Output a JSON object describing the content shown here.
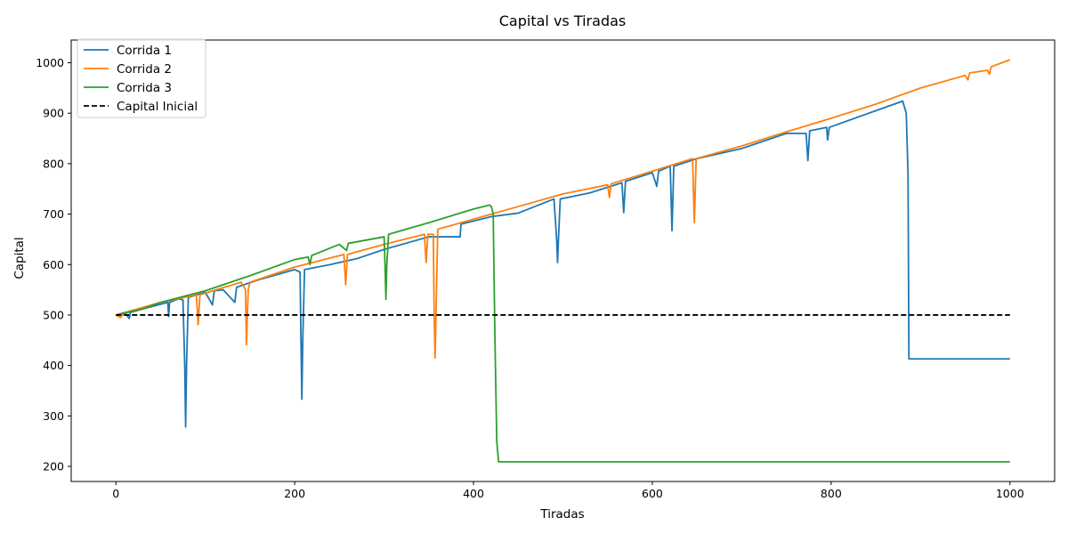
{
  "chart_data": {
    "type": "line",
    "title": "Capital vs Tiradas",
    "xlabel": "Tiradas",
    "ylabel": "Capital",
    "xlim": [
      -50,
      1050
    ],
    "ylim": [
      170,
      1045
    ],
    "xticks": [
      0,
      200,
      400,
      600,
      800,
      1000
    ],
    "yticks": [
      200,
      300,
      400,
      500,
      600,
      700,
      800,
      900,
      1000
    ],
    "grid": false,
    "legend_position": "top-left",
    "series": [
      {
        "name": "Corrida 1",
        "color": "#1f77b4",
        "style": "solid",
        "points": [
          [
            0,
            500
          ],
          [
            10,
            505
          ],
          [
            15,
            493
          ],
          [
            16,
            505
          ],
          [
            30,
            512
          ],
          [
            58,
            525
          ],
          [
            59,
            497
          ],
          [
            60,
            525
          ],
          [
            70,
            532
          ],
          [
            75,
            530
          ],
          [
            77,
            400
          ],
          [
            78,
            278
          ],
          [
            79,
            400
          ],
          [
            81,
            535
          ],
          [
            100,
            545
          ],
          [
            108,
            520
          ],
          [
            110,
            548
          ],
          [
            120,
            550
          ],
          [
            133,
            525
          ],
          [
            135,
            555
          ],
          [
            160,
            570
          ],
          [
            180,
            580
          ],
          [
            200,
            590
          ],
          [
            206,
            585
          ],
          [
            207,
            450
          ],
          [
            208,
            333
          ],
          [
            209,
            450
          ],
          [
            211,
            590
          ],
          [
            240,
            600
          ],
          [
            270,
            612
          ],
          [
            300,
            630
          ],
          [
            350,
            655
          ],
          [
            385,
            655
          ],
          [
            386,
            680
          ],
          [
            420,
            695
          ],
          [
            450,
            702
          ],
          [
            490,
            730
          ],
          [
            493,
            650
          ],
          [
            494,
            604
          ],
          [
            495,
            650
          ],
          [
            497,
            730
          ],
          [
            530,
            742
          ],
          [
            566,
            762
          ],
          [
            568,
            703
          ],
          [
            570,
            765
          ],
          [
            600,
            782
          ],
          [
            605,
            755
          ],
          [
            607,
            785
          ],
          [
            620,
            795
          ],
          [
            622,
            667
          ],
          [
            624,
            795
          ],
          [
            650,
            810
          ],
          [
            700,
            830
          ],
          [
            750,
            860
          ],
          [
            772,
            860
          ],
          [
            774,
            806
          ],
          [
            776,
            865
          ],
          [
            795,
            872
          ],
          [
            796,
            847
          ],
          [
            798,
            872
          ],
          [
            850,
            905
          ],
          [
            880,
            924
          ],
          [
            884,
            900
          ],
          [
            886,
            780
          ],
          [
            887,
            413
          ],
          [
            890,
            413
          ],
          [
            1000,
            413
          ]
        ]
      },
      {
        "name": "Corrida 2",
        "color": "#ff7f0e",
        "style": "solid",
        "points": [
          [
            0,
            500
          ],
          [
            5,
            495
          ],
          [
            10,
            505
          ],
          [
            50,
            525
          ],
          [
            90,
            540
          ],
          [
            92,
            481
          ],
          [
            94,
            540
          ],
          [
            140,
            565
          ],
          [
            145,
            550
          ],
          [
            146,
            441
          ],
          [
            148,
            550
          ],
          [
            150,
            565
          ],
          [
            200,
            595
          ],
          [
            255,
            620
          ],
          [
            257,
            560
          ],
          [
            259,
            620
          ],
          [
            300,
            640
          ],
          [
            345,
            660
          ],
          [
            347,
            604
          ],
          [
            349,
            660
          ],
          [
            355,
            660
          ],
          [
            356,
            500
          ],
          [
            357,
            415
          ],
          [
            358,
            500
          ],
          [
            360,
            670
          ],
          [
            400,
            690
          ],
          [
            450,
            715
          ],
          [
            500,
            740
          ],
          [
            550,
            758
          ],
          [
            552,
            733
          ],
          [
            554,
            760
          ],
          [
            600,
            785
          ],
          [
            645,
            810
          ],
          [
            647,
            683
          ],
          [
            649,
            810
          ],
          [
            700,
            835
          ],
          [
            750,
            863
          ],
          [
            800,
            890
          ],
          [
            850,
            918
          ],
          [
            900,
            950
          ],
          [
            950,
            975
          ],
          [
            953,
            966
          ],
          [
            955,
            980
          ],
          [
            975,
            985
          ],
          [
            977,
            977
          ],
          [
            979,
            992
          ],
          [
            1000,
            1006
          ]
        ]
      },
      {
        "name": "Corrida 3",
        "color": "#2ca02c",
        "style": "solid",
        "points": [
          [
            0,
            500
          ],
          [
            30,
            512
          ],
          [
            50,
            525
          ],
          [
            100,
            548
          ],
          [
            150,
            578
          ],
          [
            200,
            610
          ],
          [
            215,
            615
          ],
          [
            217,
            600
          ],
          [
            219,
            618
          ],
          [
            250,
            640
          ],
          [
            258,
            628
          ],
          [
            260,
            642
          ],
          [
            300,
            655
          ],
          [
            301,
            600
          ],
          [
            302,
            531
          ],
          [
            303,
            600
          ],
          [
            305,
            660
          ],
          [
            350,
            683
          ],
          [
            400,
            710
          ],
          [
            418,
            718
          ],
          [
            420,
            715
          ],
          [
            422,
            700
          ],
          [
            424,
            450
          ],
          [
            426,
            250
          ],
          [
            428,
            209
          ],
          [
            430,
            209
          ],
          [
            1000,
            209
          ]
        ]
      },
      {
        "name": "Capital Inicial",
        "color": "#000000",
        "style": "dashed",
        "points": [
          [
            0,
            500
          ],
          [
            1000,
            500
          ]
        ]
      }
    ]
  }
}
